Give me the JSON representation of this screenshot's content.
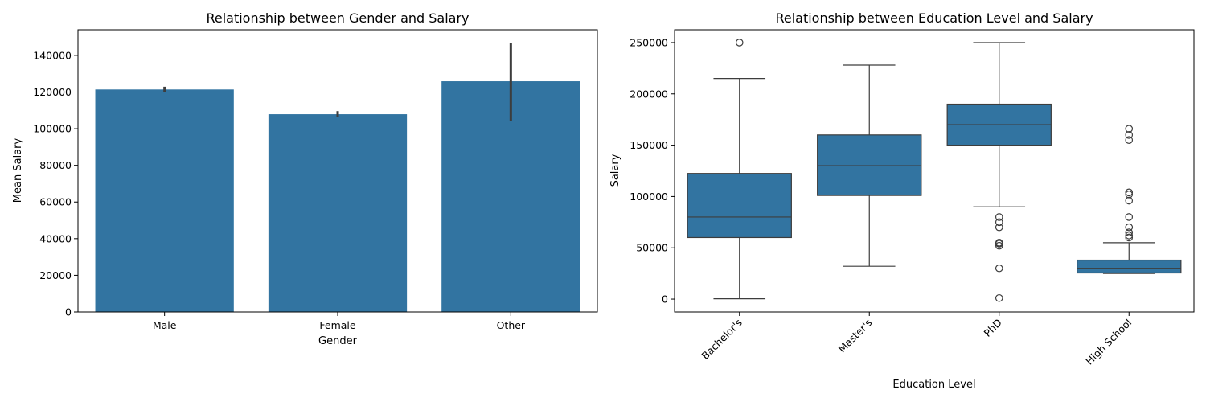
{
  "chart_data": [
    {
      "type": "bar",
      "title": "Relationship between Gender and Salary",
      "xlabel": "Gender",
      "ylabel": "Mean Salary",
      "categories": [
        "Male",
        "Female",
        "Other"
      ],
      "values": [
        121400,
        107900,
        125900
      ],
      "error_bars": [
        [
          119900,
          122900
        ],
        [
          106300,
          109600
        ],
        [
          104200,
          146800
        ]
      ],
      "ylim": [
        0,
        154000
      ],
      "yticks": [
        0,
        20000,
        40000,
        60000,
        80000,
        100000,
        120000,
        140000
      ],
      "color": "#3274a1",
      "grid": false
    },
    {
      "type": "box",
      "title": "Relationship between Education Level and Salary",
      "xlabel": "Education Level",
      "ylabel": "Salary",
      "categories": [
        "Bachelor's",
        "Master's",
        "PhD",
        "High School"
      ],
      "boxes": [
        {
          "category": "Bachelor's",
          "whisker_low": 350,
          "q1": 60000,
          "median": 80000,
          "q3": 122500,
          "whisker_high": 215000,
          "outliers": [
            250000
          ]
        },
        {
          "category": "Master's",
          "whisker_low": 32000,
          "q1": 101000,
          "median": 130000,
          "q3": 160000,
          "whisker_high": 228000,
          "outliers": []
        },
        {
          "category": "PhD",
          "whisker_low": 90000,
          "q1": 150000,
          "median": 170000,
          "q3": 190000,
          "whisker_high": 250000,
          "outliers": [
            80000,
            75000,
            70000,
            55000,
            54000,
            52000,
            30000,
            1000
          ]
        },
        {
          "category": "High School",
          "whisker_low": 25000,
          "q1": 25500,
          "median": 30000,
          "q3": 38000,
          "whisker_high": 55000,
          "outliers": [
            166000,
            160000,
            155000,
            104000,
            102000,
            96000,
            80000,
            70000,
            65000,
            62000,
            60000
          ]
        }
      ],
      "ylim": [
        -12500,
        262500
      ],
      "yticks": [
        0,
        50000,
        100000,
        150000,
        200000,
        250000
      ],
      "color": "#3274a1",
      "grid": false
    }
  ]
}
